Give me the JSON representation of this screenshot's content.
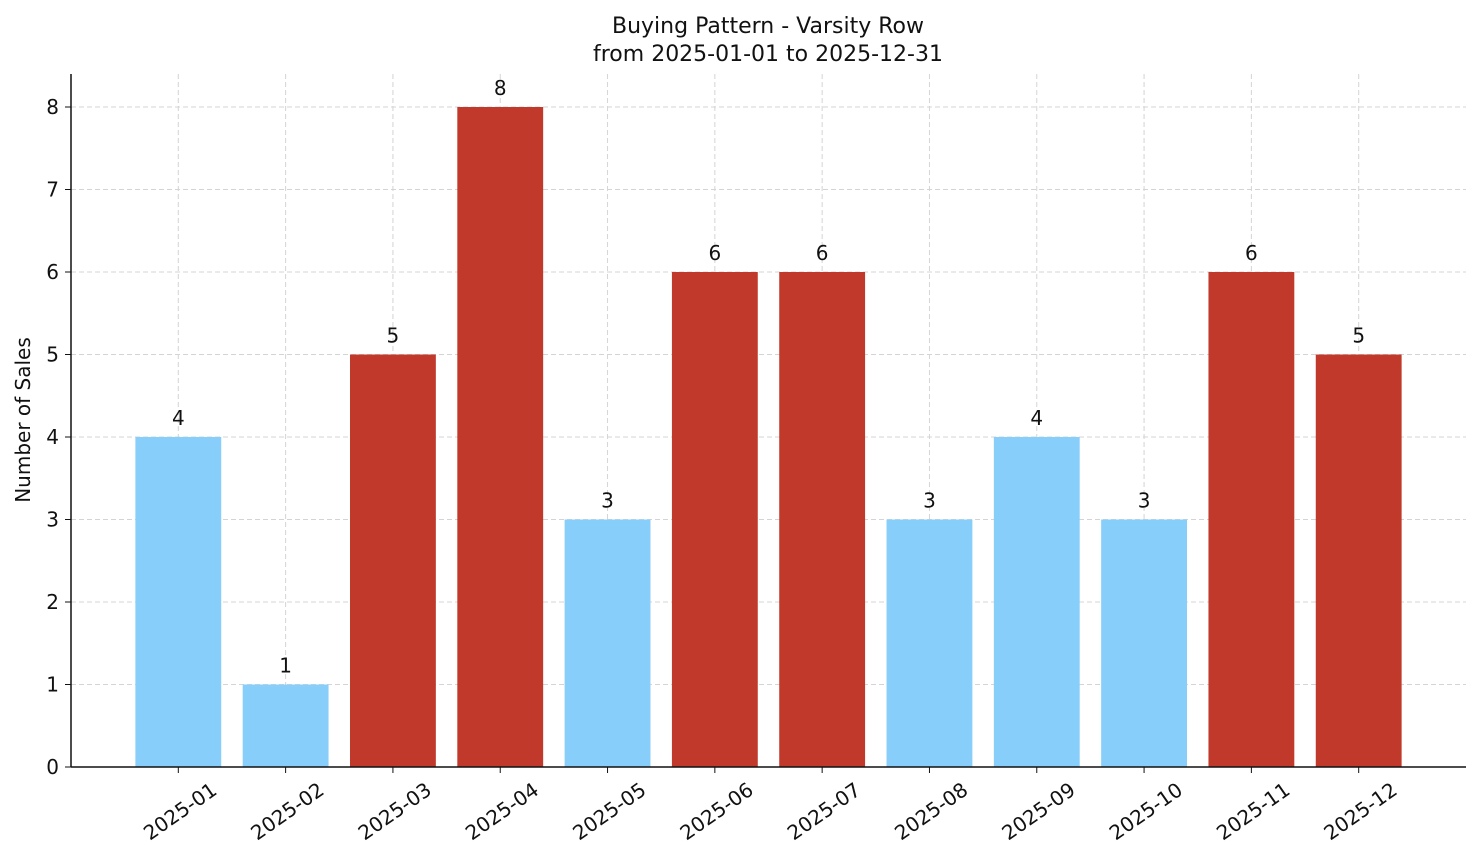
{
  "chart_data": {
    "type": "bar",
    "title": "Buying Pattern - Varsity Row",
    "subtitle": "from 2025-01-01 to 2025-12-31",
    "y_label": "Number of Sales",
    "categories": [
      "2025-01",
      "2025-02",
      "2025-03",
      "2025-04",
      "2025-05",
      "2025-06",
      "2025-07",
      "2025-08",
      "2025-09",
      "2025-10",
      "2025-11",
      "2025-12"
    ],
    "values": [
      4,
      1,
      5,
      8,
      3,
      6,
      6,
      3,
      4,
      3,
      6,
      5
    ],
    "colors": [
      "#87cefa",
      "#87cefa",
      "#c0392b",
      "#c0392b",
      "#87cefa",
      "#c0392b",
      "#c0392b",
      "#87cefa",
      "#87cefa",
      "#87cefa",
      "#c0392b",
      "#c0392b"
    ],
    "ylim": [
      0,
      8.4
    ],
    "yticks": [
      0,
      1,
      2,
      3,
      4,
      5,
      6,
      7,
      8
    ],
    "grid": true
  }
}
